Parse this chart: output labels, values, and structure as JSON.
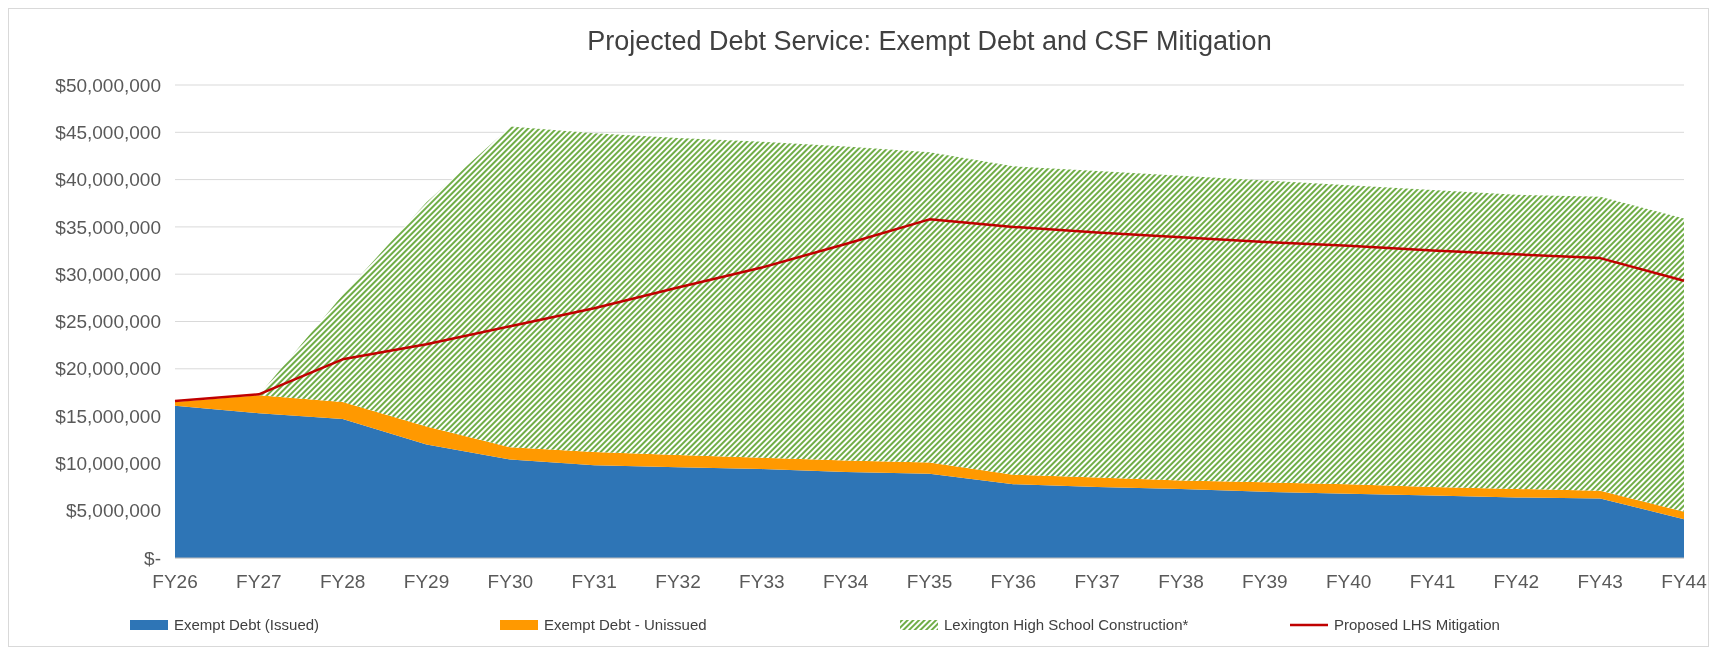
{
  "chart_data": {
    "type": "area",
    "title": "Projected Debt Service: Exempt Debt and CSF Mitigation",
    "categories": [
      "FY26",
      "FY27",
      "FY28",
      "FY29",
      "FY30",
      "FY31",
      "FY32",
      "FY33",
      "FY34",
      "FY35",
      "FY36",
      "FY37",
      "FY38",
      "FY39",
      "FY40",
      "FY41",
      "FY42",
      "FY43",
      "FY44"
    ],
    "series": [
      {
        "name": "Exempt Debt (Issued)",
        "color": "#2e75b6",
        "values": [
          16100000,
          15300000,
          14700000,
          12000000,
          10400000,
          9800000,
          9600000,
          9400000,
          9100000,
          8900000,
          7800000,
          7500000,
          7300000,
          7000000,
          6800000,
          6600000,
          6400000,
          6300000,
          4100000
        ]
      },
      {
        "name": "Exempt Debt - Unissued",
        "color": "#ff9900",
        "values": [
          400000,
          1900000,
          1800000,
          1900000,
          1300000,
          1400000,
          1300000,
          1200000,
          1200000,
          1200000,
          1000000,
          1000000,
          900000,
          1000000,
          1000000,
          900000,
          900000,
          800000,
          800000
        ]
      },
      {
        "name": "Lexington High School Construction*",
        "color": "#70ad47",
        "values": [
          0,
          0,
          11300000,
          23700000,
          33900000,
          33700000,
          33500000,
          33400000,
          33200000,
          32800000,
          32600000,
          32400000,
          32200000,
          31900000,
          31600000,
          31400000,
          31100000,
          31100000,
          31000000
        ]
      },
      {
        "name": "Proposed LHS Mitigation",
        "type": "line",
        "color": "#c00000",
        "values": [
          16600000,
          17300000,
          21000000,
          22600000,
          24500000,
          26400000,
          28600000,
          30700000,
          33200000,
          35800000,
          35000000,
          34400000,
          33900000,
          33400000,
          33000000,
          32500000,
          32100000,
          31700000,
          29300000
        ]
      }
    ],
    "stacked": true,
    "ylim": [
      0,
      50000000
    ],
    "yticks": [
      {
        "value": 0,
        "label": "$-"
      },
      {
        "value": 5000000,
        "label": "$5,000,000"
      },
      {
        "value": 10000000,
        "label": "$10,000,000"
      },
      {
        "value": 15000000,
        "label": "$15,000,000"
      },
      {
        "value": 20000000,
        "label": "$20,000,000"
      },
      {
        "value": 25000000,
        "label": "$25,000,000"
      },
      {
        "value": 30000000,
        "label": "$30,000,000"
      },
      {
        "value": 35000000,
        "label": "$35,000,000"
      },
      {
        "value": 40000000,
        "label": "$40,000,000"
      },
      {
        "value": 45000000,
        "label": "$45,000,000"
      },
      {
        "value": 50000000,
        "label": "$50,000,000"
      }
    ],
    "grid": "y",
    "legend": "bottom"
  }
}
